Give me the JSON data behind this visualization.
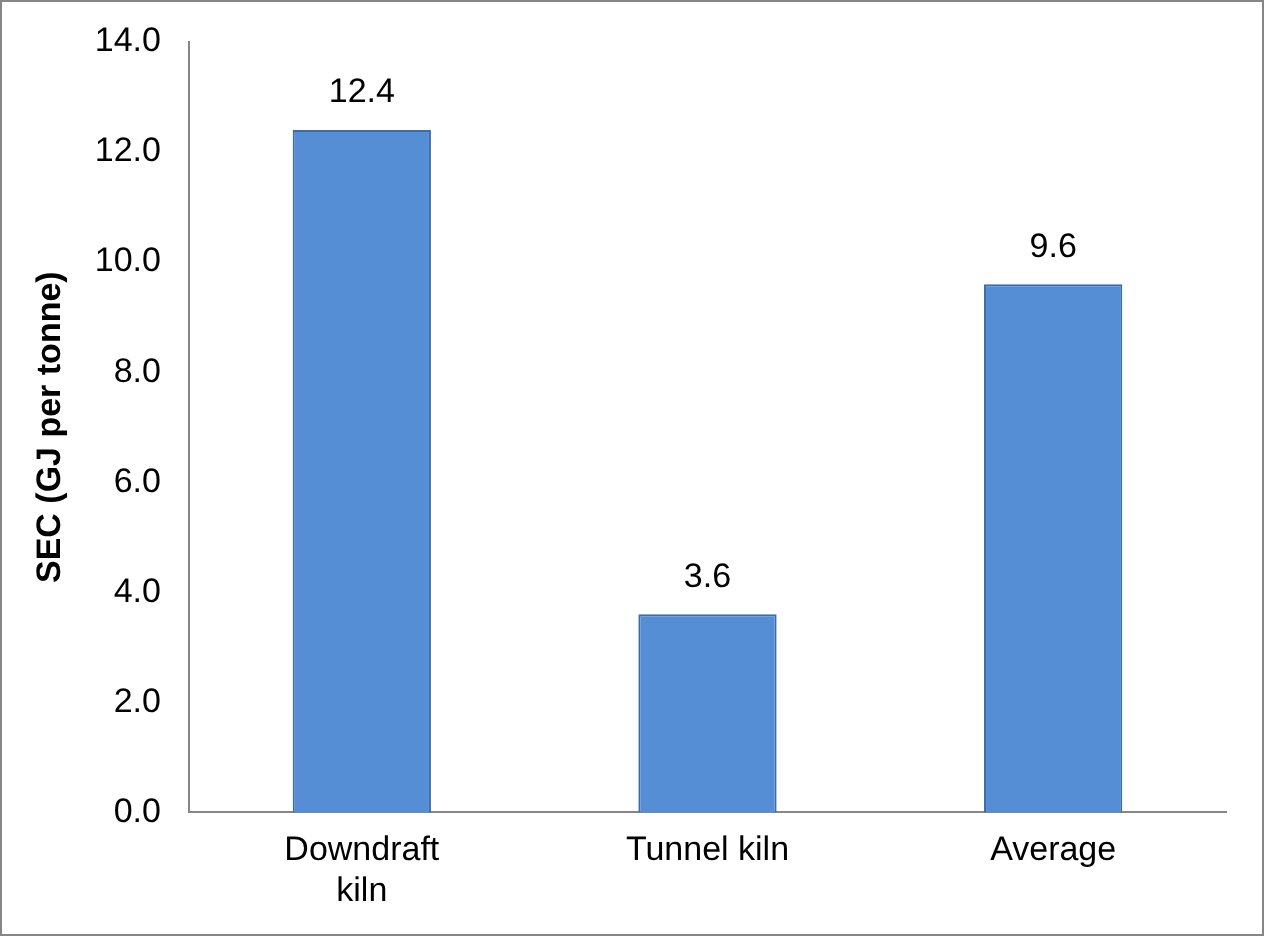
{
  "chart_data": {
    "type": "bar",
    "ylabel": "SEC (GJ per tonne)",
    "categories": [
      "Downdraft kiln",
      "Tunnel kiln",
      "Average"
    ],
    "values": [
      12.4,
      3.6,
      9.6
    ],
    "color": "#558ed5",
    "ylim": [
      0,
      14
    ],
    "yticks": [
      {
        "value": 0,
        "label": "0.0"
      },
      {
        "value": 2,
        "label": "2.0"
      },
      {
        "value": 4,
        "label": "4.0"
      },
      {
        "value": 6,
        "label": "6.0"
      },
      {
        "value": 8,
        "label": "8.0"
      },
      {
        "value": 10,
        "label": "10.0"
      },
      {
        "value": 12,
        "label": "12.0"
      },
      {
        "value": 14,
        "label": "14.0"
      }
    ],
    "grid": false,
    "legend": false,
    "data_labels": true
  }
}
